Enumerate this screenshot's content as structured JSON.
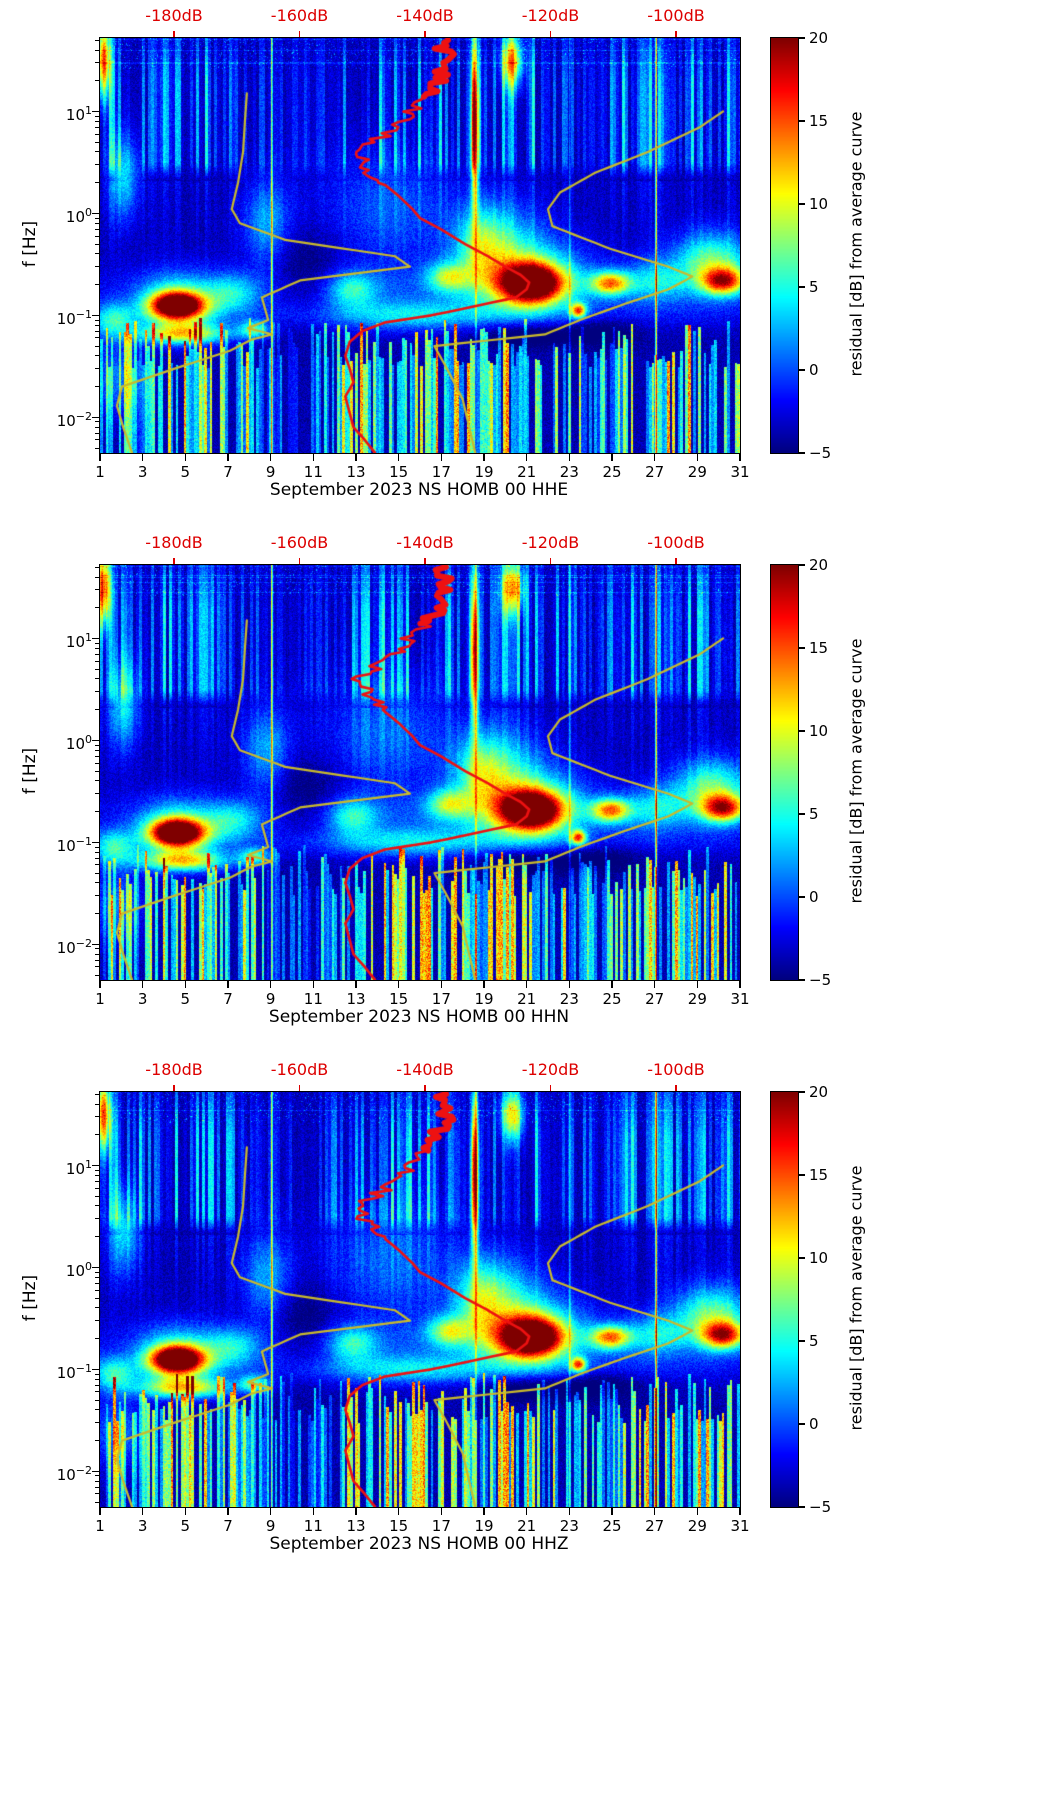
{
  "chart_data": {
    "type": "heatmap",
    "description_visible": "Three stacked day-frequency residual power spectrograms with overlaid PSD curve (red) and noise-model curves (yellow)",
    "panels": [
      {
        "xlabel": "September 2023 NS HOMB 00 HHE",
        "channel": "HHE",
        "seed": 3
      },
      {
        "xlabel": "September 2023 NS HOMB 00 HHN",
        "channel": "HHN",
        "seed": 7
      },
      {
        "xlabel": "September 2023 NS HOMB 00 HHZ",
        "channel": "HHZ",
        "seed": 12
      }
    ],
    "x_axis": {
      "range": [
        1,
        31
      ],
      "label_days": [
        1,
        3,
        5,
        7,
        9,
        11,
        13,
        15,
        17,
        19,
        21,
        23,
        25,
        27,
        29,
        31
      ]
    },
    "y_axis": {
      "label": "f [Hz]",
      "tick_exponents": [
        1,
        0,
        -1,
        -2
      ],
      "log10_range": [
        -2.35,
        1.72
      ]
    },
    "top_axis": {
      "tick_labels": [
        "-180dB",
        "-160dB",
        "-140dB",
        "-120dB",
        "-100dB"
      ],
      "tick_values": [
        -180,
        -160,
        -140,
        -120,
        -100
      ],
      "range": [
        -191.8,
        -89.8
      ],
      "color": "#dd0000"
    },
    "colorbar": {
      "label": "residual [dB] from average curve",
      "ticks": [
        -5,
        0,
        5,
        10,
        15,
        20
      ],
      "range": [
        -5,
        20
      ],
      "colormap": "jet"
    },
    "curves": {
      "psd_curve": {
        "color": "#ee1111",
        "points_f_db": [
          [
            50,
            -137.6
          ],
          [
            30,
            -136.5
          ],
          [
            20,
            -138
          ],
          [
            14,
            -139.5
          ],
          [
            10,
            -142.4
          ],
          [
            7,
            -145
          ],
          [
            5,
            -148
          ],
          [
            4,
            -150.7
          ],
          [
            3,
            -149.5
          ],
          [
            2.5,
            -148.4
          ],
          [
            2,
            -146.8
          ],
          [
            1.5,
            -144.3
          ],
          [
            1.1,
            -142
          ],
          [
            0.9,
            -140.8
          ],
          [
            0.7,
            -137.5
          ],
          [
            0.5,
            -133.6
          ],
          [
            0.38,
            -130
          ],
          [
            0.3,
            -127.2
          ],
          [
            0.25,
            -124.8
          ],
          [
            0.21,
            -123.4
          ],
          [
            0.18,
            -123.8
          ],
          [
            0.15,
            -125.5
          ],
          [
            0.12,
            -132.8
          ],
          [
            0.1,
            -139
          ],
          [
            0.085,
            -146.4
          ],
          [
            0.07,
            -150
          ],
          [
            0.055,
            -152
          ],
          [
            0.04,
            -152.7
          ],
          [
            0.03,
            -152
          ],
          [
            0.022,
            -151.4
          ],
          [
            0.016,
            -152.7
          ],
          [
            0.011,
            -152
          ],
          [
            0.008,
            -151.4
          ],
          [
            0.006,
            -149.6
          ],
          [
            0.0045,
            -148
          ]
        ]
      },
      "low_noise_model": {
        "color": "#c9ba2c",
        "points_f_db": [
          [
            15,
            -168.4
          ],
          [
            8,
            -168.7
          ],
          [
            4,
            -169
          ],
          [
            2,
            -169.8
          ],
          [
            1.1,
            -170.8
          ],
          [
            0.8,
            -169.5
          ],
          [
            0.55,
            -162.3
          ],
          [
            0.38,
            -144.8
          ],
          [
            0.3,
            -142.4
          ],
          [
            0.22,
            -159.9
          ],
          [
            0.15,
            -166
          ],
          [
            0.09,
            -165
          ],
          [
            0.075,
            -168.2
          ],
          [
            0.065,
            -164.4
          ],
          [
            0.058,
            -167.6
          ],
          [
            0.045,
            -171.1
          ],
          [
            0.03,
            -179.9
          ],
          [
            0.02,
            -188.3
          ],
          [
            0.013,
            -189.1
          ],
          [
            0.008,
            -188.1
          ],
          [
            0.0045,
            -186.7
          ]
        ]
      },
      "high_noise_model": {
        "color": "#c9ba2c",
        "points_f_db": [
          [
            10,
            -92.5
          ],
          [
            7,
            -96.2
          ],
          [
            4,
            -104.5
          ],
          [
            2.5,
            -112.9
          ],
          [
            1.6,
            -118.5
          ],
          [
            1.1,
            -120.4
          ],
          [
            0.75,
            -119.7
          ],
          [
            0.45,
            -110.5
          ],
          [
            0.3,
            -101.2
          ],
          [
            0.24,
            -97.4
          ],
          [
            0.18,
            -101.2
          ],
          [
            0.13,
            -108.1
          ],
          [
            0.09,
            -115.3
          ],
          [
            0.065,
            -120.9
          ],
          [
            0.05,
            -138.5
          ],
          [
            0.03,
            -136.5
          ],
          [
            0.015,
            -134
          ],
          [
            0.0045,
            -132
          ]
        ]
      }
    },
    "spectrogram": {
      "base_residual_db": -3.8,
      "blobs_day_sd_logf_slogf_amp": [
        [
          4.6,
          0.85,
          -0.9,
          0.09,
          25
        ],
        [
          4.6,
          1.3,
          -0.88,
          0.2,
          9
        ],
        [
          4.9,
          1.5,
          -1.18,
          0.07,
          13
        ],
        [
          8.2,
          0.5,
          -1.14,
          0.06,
          9
        ],
        [
          1.6,
          0.7,
          -1.05,
          0.12,
          8
        ],
        [
          1.8,
          0.8,
          -1.62,
          0.25,
          5
        ],
        [
          7.2,
          0.9,
          -0.78,
          0.13,
          6
        ],
        [
          12.8,
          0.8,
          -0.74,
          0.12,
          7
        ],
        [
          15.5,
          2.6,
          -1.0,
          0.1,
          5
        ],
        [
          17.3,
          0.7,
          -0.62,
          0.1,
          9
        ],
        [
          21.2,
          1.0,
          -0.68,
          0.13,
          25
        ],
        [
          21.0,
          1.9,
          -0.62,
          0.26,
          9
        ],
        [
          19.6,
          1.4,
          -0.28,
          0.3,
          7
        ],
        [
          18.8,
          0.7,
          -0.3,
          0.25,
          5
        ],
        [
          23.4,
          0.25,
          -0.95,
          0.05,
          16
        ],
        [
          24.9,
          0.65,
          -0.68,
          0.08,
          15
        ],
        [
          27.0,
          1.0,
          -0.66,
          0.15,
          6
        ],
        [
          30.2,
          0.7,
          -0.66,
          0.09,
          16
        ],
        [
          29.8,
          1.2,
          -0.5,
          0.22,
          7
        ],
        [
          18.55,
          0.13,
          0.9,
          0.55,
          20
        ],
        [
          20.3,
          0.35,
          1.5,
          0.18,
          14
        ],
        [
          1.15,
          0.22,
          1.5,
          0.25,
          18
        ],
        [
          2.1,
          0.5,
          0.35,
          0.3,
          7
        ],
        [
          8.8,
          0.8,
          -0.1,
          0.3,
          6
        ],
        [
          14.5,
          2.2,
          0.05,
          0.4,
          4
        ],
        [
          10.5,
          1.3,
          -0.6,
          0.3,
          -3
        ],
        [
          21.0,
          1.6,
          -1.18,
          0.09,
          -4
        ],
        [
          24.5,
          1.2,
          -1.15,
          0.1,
          -3
        ],
        [
          29.5,
          1.4,
          -0.45,
          0.2,
          4
        ],
        [
          16.0,
          12.0,
          -0.75,
          0.18,
          3
        ],
        [
          16.0,
          12.0,
          -1.0,
          0.1,
          2
        ]
      ],
      "vertical_lines_day_amp": [
        [
          9.03,
          13
        ],
        [
          18.6,
          6
        ],
        [
          23.0,
          5
        ],
        [
          27.05,
          16
        ]
      ],
      "hf_stripe_envelope_day_amp": [
        [
          1,
          0.75
        ],
        [
          2,
          0.9
        ],
        [
          3,
          0.8
        ],
        [
          4,
          0.9
        ],
        [
          5,
          0.85
        ],
        [
          6,
          0.9
        ],
        [
          7,
          0.8
        ],
        [
          8,
          0.55
        ],
        [
          9,
          0.3
        ],
        [
          10,
          0.3
        ],
        [
          11,
          0.35
        ],
        [
          12,
          0.55
        ],
        [
          13,
          0.95
        ],
        [
          14,
          0.9
        ],
        [
          15,
          0.95
        ],
        [
          16,
          0.9
        ],
        [
          17,
          0.95
        ],
        [
          18,
          0.85
        ],
        [
          19,
          0.45
        ],
        [
          20,
          0.9
        ],
        [
          21,
          0.95
        ],
        [
          22,
          0.85
        ],
        [
          23,
          0.6
        ],
        [
          24,
          0.5
        ],
        [
          25,
          0.85
        ],
        [
          26,
          0.9
        ],
        [
          27,
          0.95
        ],
        [
          28,
          0.9
        ],
        [
          29,
          0.95
        ],
        [
          30,
          0.9
        ],
        [
          31,
          0.85
        ]
      ],
      "lf_stripe_envelope_day_amp": [
        [
          1,
          0.45
        ],
        [
          1.5,
          0.85
        ],
        [
          2.2,
          0.7
        ],
        [
          2.8,
          0.4
        ],
        [
          3.5,
          0.9
        ],
        [
          4,
          1
        ],
        [
          5,
          1
        ],
        [
          6,
          1
        ],
        [
          7,
          0.95
        ],
        [
          8,
          0.85
        ],
        [
          9,
          0.4
        ],
        [
          10,
          0.3
        ],
        [
          11,
          0.45
        ],
        [
          12,
          0.7
        ],
        [
          13,
          1
        ],
        [
          14,
          1
        ],
        [
          15,
          0.95
        ],
        [
          16,
          1
        ],
        [
          17,
          1
        ],
        [
          18,
          0.95
        ],
        [
          19,
          0.85
        ],
        [
          20,
          1
        ],
        [
          21,
          0.95
        ],
        [
          22,
          0.9
        ],
        [
          23,
          0.85
        ],
        [
          24,
          0.6
        ],
        [
          25,
          0.65
        ],
        [
          26,
          0.9
        ],
        [
          27,
          1
        ],
        [
          28,
          0.95
        ],
        [
          29,
          1
        ],
        [
          30,
          1
        ],
        [
          31,
          0.9
        ]
      ]
    }
  }
}
